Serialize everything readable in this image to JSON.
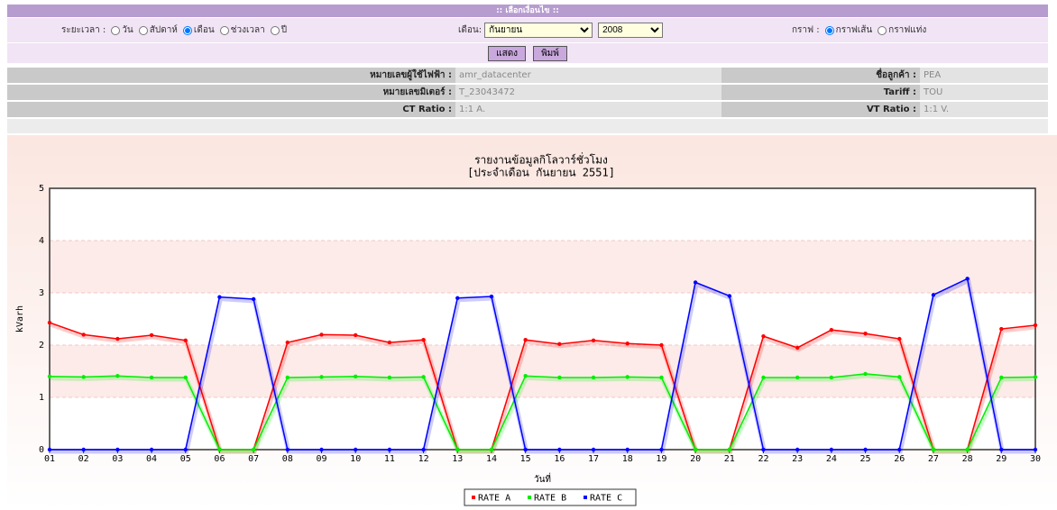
{
  "header": {
    "title": ":: เลือกเงื่อนไข ::"
  },
  "form": {
    "period_label": "ระยะเวลา :",
    "period_options": [
      "วัน",
      "สัปดาห์",
      "เดือน",
      "ช่วงเวลา",
      "ปี"
    ],
    "period_selected": "เดือน",
    "month_label": "เดือน:",
    "month": "กันยายน",
    "year": "2008",
    "graph_label": "กราฟ :",
    "graph_options": [
      "กราฟเส้น",
      "กราฟแท่ง"
    ],
    "graph_selected": "กราฟเส้น",
    "buttons": [
      "แสดง",
      "พิมพ์"
    ]
  },
  "info": [
    {
      "label": "หมายเลขผู้ใช้ไฟฟ้า :",
      "value": "amr_datacenter"
    },
    {
      "label": "ชื่อลูกค้า :",
      "value": "PEA"
    },
    {
      "label": "หมายเลขมิเตอร์ :",
      "value": "T_23043472"
    },
    {
      "label": "Tariff :",
      "value": "TOU"
    },
    {
      "label": "CT Ratio :",
      "value": "1:1 A."
    },
    {
      "label": "VT Ratio :",
      "value": "1:1 V."
    }
  ],
  "chart_data": {
    "type": "line",
    "title": "รายงานข้อมูลกิโลวาร์ชั่วโมง",
    "subtitle": "[ประจำเดือน กันยายน 2551]",
    "x_label": "วันที่",
    "y_label": "kVarh",
    "categories": [
      "01",
      "02",
      "03",
      "04",
      "05",
      "06",
      "07",
      "08",
      "09",
      "10",
      "11",
      "12",
      "13",
      "14",
      "15",
      "16",
      "17",
      "18",
      "19",
      "20",
      "21",
      "22",
      "23",
      "24",
      "25",
      "26",
      "27",
      "28",
      "29",
      "30"
    ],
    "series": [
      {
        "name": "RATE A",
        "color": "#ff0000",
        "values": [
          2.43,
          2.2,
          2.12,
          2.19,
          2.09,
          0,
          0,
          2.05,
          2.2,
          2.19,
          2.05,
          2.1,
          0,
          0,
          2.1,
          2.02,
          2.09,
          2.03,
          2.0,
          0,
          0,
          2.17,
          1.95,
          2.29,
          2.22,
          2.12,
          0,
          0,
          2.31,
          2.38
        ]
      },
      {
        "name": "RATE B",
        "color": "#00ee00",
        "values": [
          1.4,
          1.39,
          1.41,
          1.38,
          1.38,
          0,
          0,
          1.38,
          1.39,
          1.4,
          1.38,
          1.39,
          0,
          0,
          1.41,
          1.38,
          1.38,
          1.39,
          1.38,
          0,
          0,
          1.38,
          1.38,
          1.38,
          1.45,
          1.39,
          0,
          0,
          1.38,
          1.39
        ]
      },
      {
        "name": "RATE C",
        "color": "#0000ff",
        "values": [
          0,
          0,
          0,
          0,
          0,
          2.92,
          2.88,
          0,
          0,
          0,
          0,
          0,
          2.9,
          2.93,
          0,
          0,
          0,
          0,
          0,
          3.2,
          2.94,
          0,
          0,
          0,
          0,
          0,
          2.96,
          3.27,
          0,
          0
        ]
      }
    ],
    "ylim": [
      0,
      5
    ],
    "yticks": [
      0,
      1,
      2,
      3,
      4,
      5
    ],
    "grid": true,
    "legend": "bottom"
  }
}
